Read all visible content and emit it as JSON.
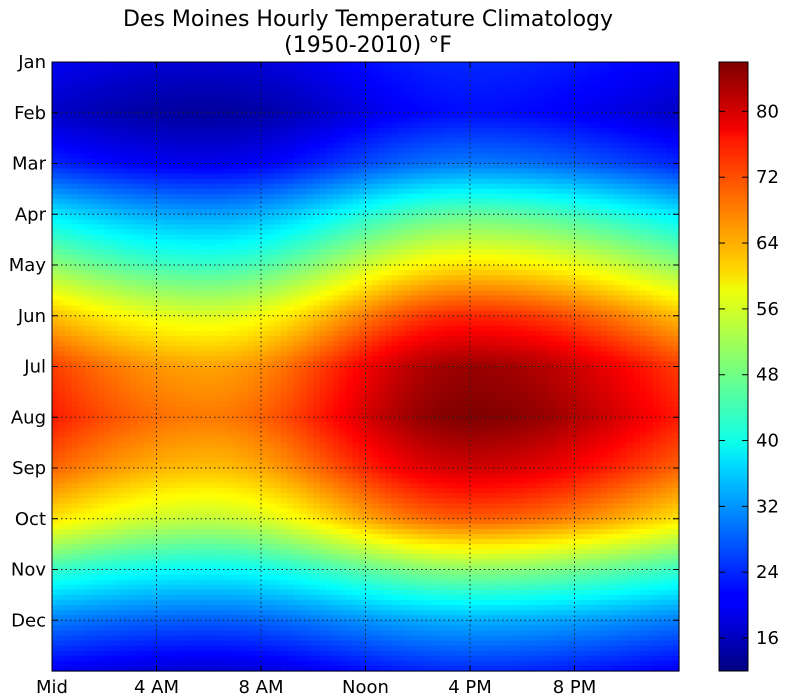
{
  "chart_data": {
    "type": "heatmap",
    "title": "Des Moines Hourly Temperature Climatology",
    "subtitle": "(1950-2010) °F",
    "x_tick_labels": [
      "Mid",
      "4 AM",
      "8 AM",
      "Noon",
      "4 PM",
      "8 PM"
    ],
    "x_tick_hours": [
      0,
      4,
      8,
      12,
      16,
      20
    ],
    "xlim": [
      0,
      24
    ],
    "y_tick_labels": [
      "Jan",
      "Feb",
      "Mar",
      "Apr",
      "May",
      "Jun",
      "Jul",
      "Aug",
      "Sep",
      "Oct",
      "Nov",
      "Dec"
    ],
    "y_tick_months": [
      0,
      1,
      2,
      3,
      4,
      5,
      6,
      7,
      8,
      9,
      10,
      11
    ],
    "ylim": [
      0,
      12
    ],
    "y_inverted": true,
    "grid": true,
    "colorbar": {
      "colormap": "jet",
      "range": [
        12,
        86
      ],
      "tick_labels": [
        "16",
        "24",
        "32",
        "40",
        "48",
        "56",
        "64",
        "72",
        "80"
      ],
      "tick_values": [
        16,
        24,
        32,
        40,
        48,
        56,
        64,
        72,
        80
      ]
    },
    "temperature_model": {
      "month_axis": [
        0,
        1,
        2,
        3,
        4,
        5,
        6,
        7,
        8,
        9,
        10,
        11,
        12
      ],
      "daily_low": [
        18,
        14,
        20,
        33,
        44,
        56,
        65,
        68,
        63,
        54,
        40,
        28,
        18
      ],
      "daily_high": [
        24,
        22,
        30,
        47,
        60,
        74,
        84,
        86,
        80,
        70,
        50,
        34,
        24
      ],
      "coldest_hour": 6,
      "warmest_hour": 16
    }
  }
}
